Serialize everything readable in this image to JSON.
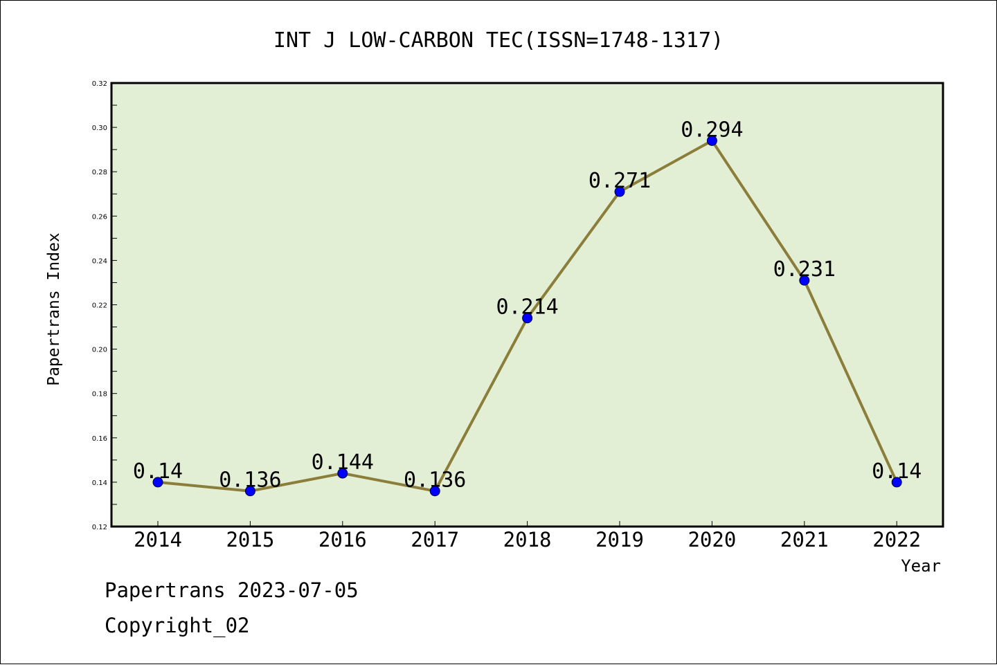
{
  "chart_data": {
    "type": "line",
    "title": "INT J LOW-CARBON TEC(ISSN=1748-1317)",
    "xlabel": "Year",
    "ylabel": "Papertrans Index",
    "categories": [
      "2014",
      "2015",
      "2016",
      "2017",
      "2018",
      "2019",
      "2020",
      "2021",
      "2022"
    ],
    "series": [
      {
        "values": [
          0.14,
          0.136,
          0.144,
          0.136,
          0.214,
          0.271,
          0.294,
          0.231,
          0.14
        ],
        "data_labels": [
          "0.14",
          "0.136",
          "0.144",
          "0.136",
          "0.214",
          "0.271",
          "0.294",
          "0.231",
          "0.14"
        ],
        "line_color": "#8b7d3a",
        "marker_color": "#0000ff"
      }
    ],
    "ylim": [
      0.12,
      0.32
    ],
    "yticks": [
      "0.12",
      "0.14",
      "0.16",
      "0.18",
      "0.20",
      "0.22",
      "0.24",
      "0.26",
      "0.28",
      "0.30",
      "0.32"
    ],
    "plot_background": "#e2efd5",
    "grid": false,
    "legend": "none"
  },
  "footer": {
    "line1": "Papertrans 2023-07-05",
    "line2": "Copyright_02"
  }
}
